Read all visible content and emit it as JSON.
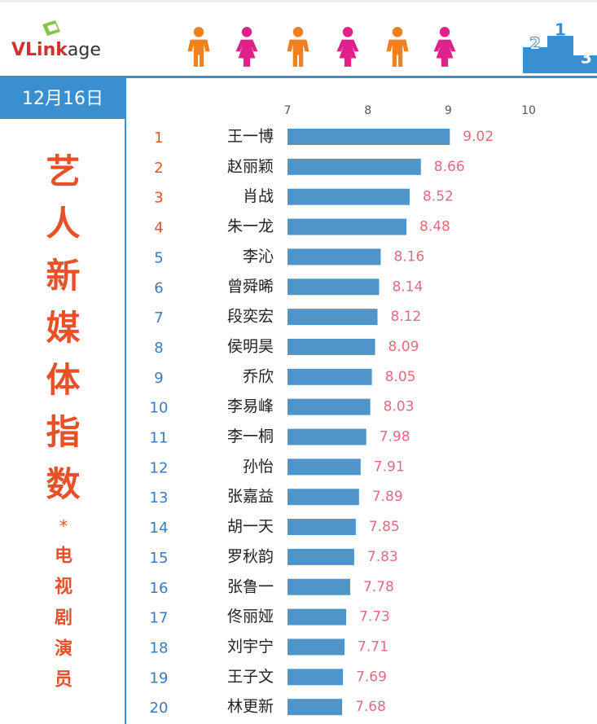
{
  "header": {
    "logo": [
      "VLink",
      "age"
    ],
    "podium_labels": [
      "2",
      "1",
      "3"
    ]
  },
  "date": "12月16日",
  "chart_data": {
    "type": "bar",
    "orientation": "horizontal",
    "title": "艺人新媒体指数",
    "marker": "*",
    "subtitle": "电视剧演员",
    "ranks": [
      1,
      2,
      3,
      4,
      5,
      6,
      7,
      8,
      9,
      10,
      11,
      12,
      13,
      14,
      15,
      16,
      17,
      18,
      19,
      20
    ],
    "categories": [
      "王一博",
      "赵丽颖",
      "肖战",
      "朱一龙",
      "李沁",
      "曾舜晞",
      "段奕宏",
      "侯明昊",
      "乔欣",
      "李易峰",
      "李一桐",
      "孙怡",
      "张嘉益",
      "胡一天",
      "罗秋韵",
      "张鲁一",
      "佟丽娅",
      "刘宇宁",
      "王子文",
      "林更新"
    ],
    "values": [
      9.02,
      8.66,
      8.52,
      8.48,
      8.16,
      8.14,
      8.12,
      8.09,
      8.05,
      8.03,
      7.98,
      7.91,
      7.89,
      7.85,
      7.83,
      7.78,
      7.73,
      7.71,
      7.69,
      7.68
    ],
    "color": "#4f95c9",
    "label_color": "#e36a7c",
    "xlim": [
      7,
      10
    ],
    "xticks": [
      7,
      8,
      9,
      10
    ],
    "grid": false
  }
}
